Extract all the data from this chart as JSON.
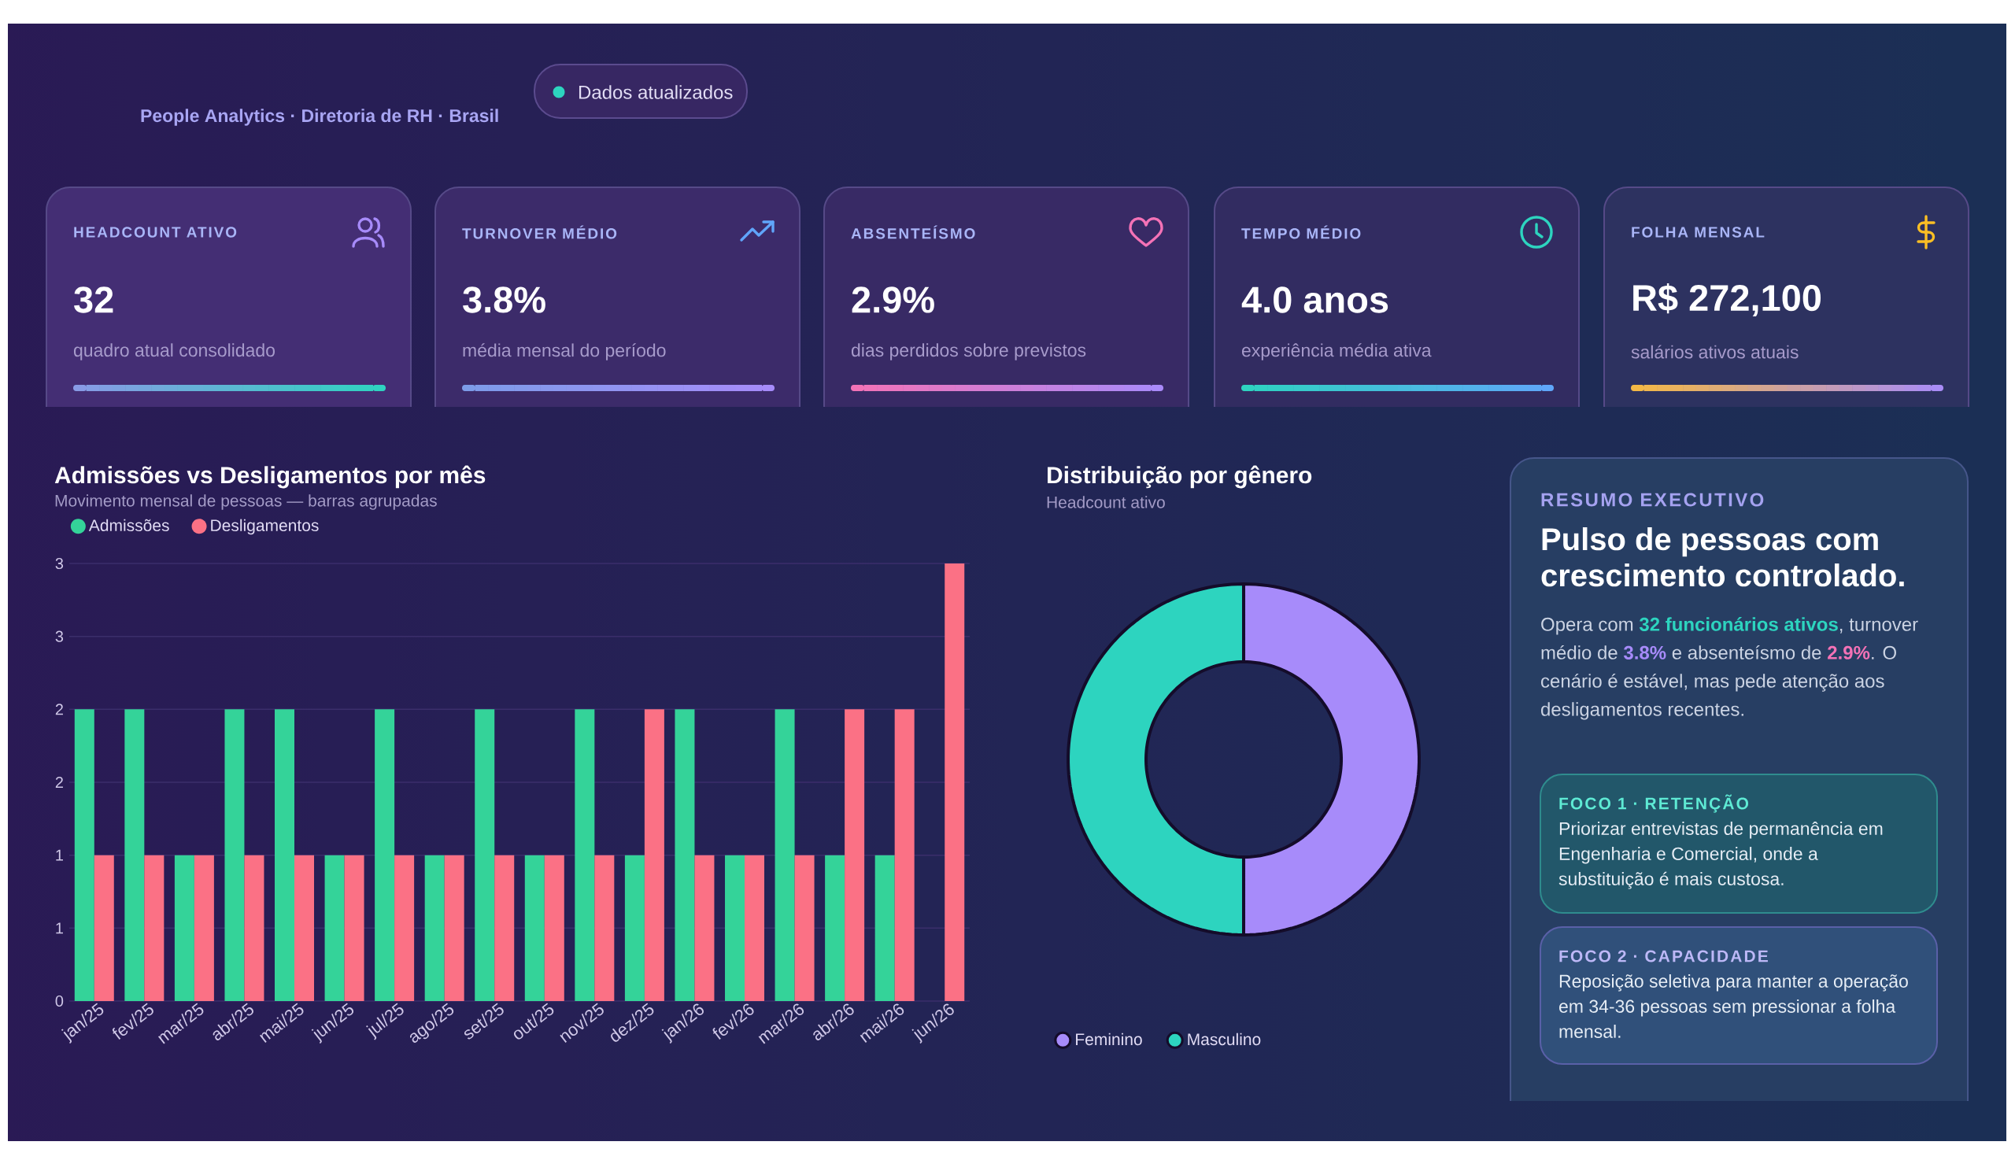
{
  "chart_data": [
    {
      "type": "other",
      "subtitle": "People Analytics · Diretoria de RH · Brasil",
      "annotations": [
        "Dados atualizados"
      ]
    },
    {
      "type": "other",
      "title": "HEADCOUNT ATIVO",
      "annotations": [
        "32",
        "quadro atual consolidado"
      ]
    },
    {
      "type": "other",
      "title": "TURNOVER MÉDIO",
      "annotations": [
        "3.8%",
        "média mensal do período"
      ]
    },
    {
      "type": "other",
      "title": "ABSENTEÍSMO",
      "annotations": [
        "2.9%",
        "dias perdidos sobre previstos"
      ]
    },
    {
      "type": "other",
      "title": "TEMPO MÉDIO",
      "annotations": [
        "4.0 anos",
        "experiência média ativa"
      ]
    },
    {
      "type": "other",
      "title": "FOLHA MENSAL",
      "annotations": [
        "R$ 272,100",
        "salários ativos atuais"
      ]
    },
    {
      "type": "bar",
      "title": "Admissões vs Desligamentos por mês",
      "subtitle": "Movimento mensal de pessoas — barras agrupadas",
      "categories": [
        "jan/25",
        "fev/25",
        "mar/25",
        "abr/25",
        "mai/25",
        "jun/25",
        "jul/25",
        "ago/25",
        "set/25",
        "out/25",
        "nov/25",
        "dez/25",
        "jan/26",
        "fev/26",
        "mar/26",
        "abr/26",
        "mai/26",
        "jun/26"
      ],
      "series": [
        {
          "name": "Admissões",
          "color": "#34d399",
          "values": [
            2,
            2,
            1,
            2,
            2,
            1,
            2,
            1,
            2,
            1,
            2,
            1,
            2,
            1,
            2,
            1,
            1,
            0
          ]
        },
        {
          "name": "Desligamentos",
          "color": "#fb7185",
          "values": [
            1,
            1,
            1,
            1,
            1,
            1,
            1,
            1,
            1,
            1,
            1,
            2,
            1,
            1,
            1,
            2,
            2,
            3
          ]
        }
      ],
      "ylim": [
        0,
        3
      ],
      "yticks": [
        0,
        {
          "value": 0.5,
          "label": "1"
        },
        1,
        {
          "value": 1.5,
          "label": "2"
        },
        2,
        {
          "value": 2.5,
          "label": "3"
        },
        3
      ],
      "grid": "y",
      "legend": "top left"
    },
    {
      "type": "donut",
      "title": "Distribuição por gênero",
      "subtitle": "Headcount ativo",
      "categories": [
        "Feminino",
        "Masculino"
      ],
      "values": [
        50,
        50
      ],
      "colors": [
        "#a78bfa",
        "#2dd4bf"
      ],
      "legend": "bottom left"
    },
    {
      "type": "other",
      "subtitle": "RESUMO EXECUTIVO",
      "title": "Pulso de pessoas com crescimento controlado.",
      "annotations": [
        "Opera com **32 funcionários ativos**, turnover médio de **3.8%** e absenteísmo de **2.9%**. O cenário é estável, mas pede atenção aos desligamentos recentes.",
        "FOCO 1 · RETENÇÃO",
        "Priorizar entrevistas de permanência em Engenharia e Comercial, onde a substituição é mais custosa.",
        "FOCO 2 · CAPACIDADE",
        "Reposição seletiva para manter a operação em 34-36 pessoas sem pressionar a folha mensal."
      ]
    }
  ]
}
